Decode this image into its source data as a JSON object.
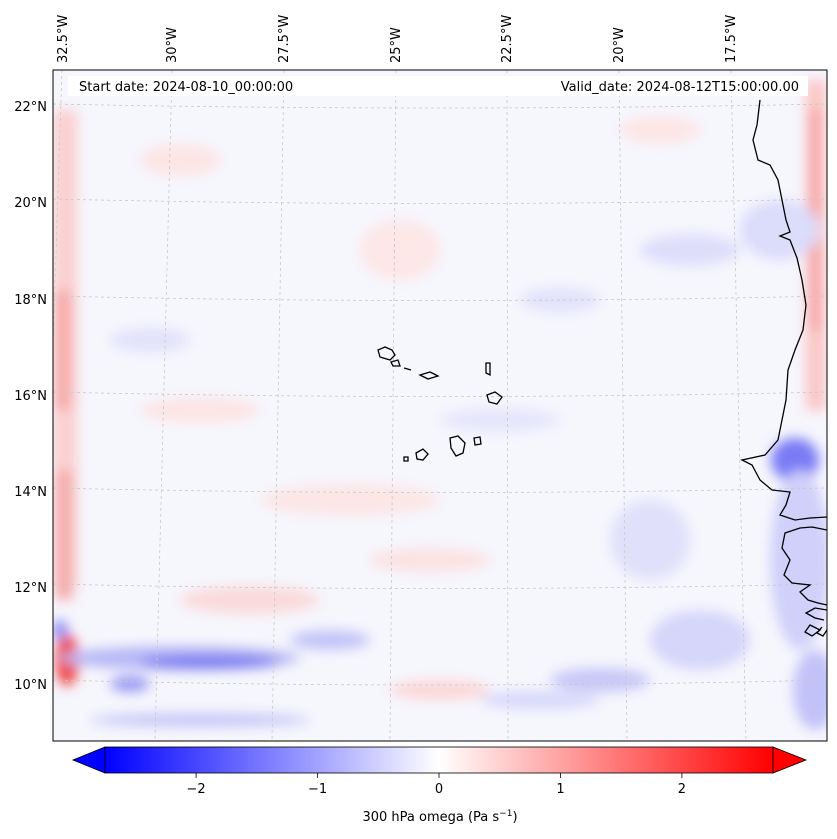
{
  "map": {
    "title_left": "Start date: 2024-08-10_00:00:00",
    "title_right": "Valid_date: 2024-08-12T15:00:00.00",
    "lon_labels": [
      "32.5°W",
      "30°W",
      "27.5°W",
      "25°W",
      "22.5°W",
      "20°W",
      "17.5°W"
    ],
    "lat_labels": [
      "22°N",
      "20°N",
      "18°N",
      "16°N",
      "14°N",
      "12°N",
      "10°N"
    ]
  },
  "colorbar": {
    "ticks": [
      "−2",
      "−1",
      "0",
      "1",
      "2"
    ],
    "tick_values": [
      -2,
      -1,
      0,
      1,
      2
    ],
    "range": [
      -2.75,
      2.75
    ],
    "label_prefix": "300 hPa omega (Pa s",
    "label_sup": "−1",
    "label_suffix": ")",
    "cmap": {
      "low": "#0000ff",
      "mid": "#ffffff",
      "high": "#ff0000"
    }
  },
  "legend_colors": {
    "positive": "#ff0000",
    "negative": "#0000ff",
    "coastline": "#000000",
    "gridline": "#b0b0b0"
  }
}
